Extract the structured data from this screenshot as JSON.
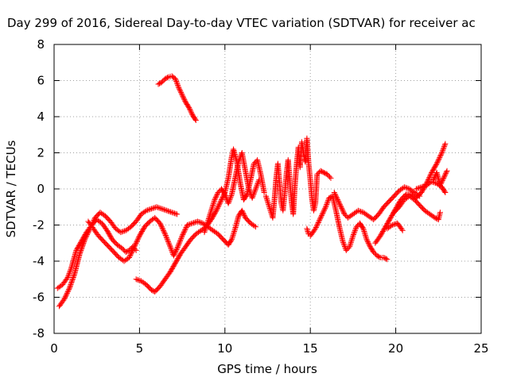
{
  "chart_data": {
    "type": "scatter",
    "title": "Day 299 of 2016, Sidereal Day-to-day VTEC variation (SDTVAR) for receiver ac",
    "xlabel": "GPS time / hours",
    "ylabel": "SDTVAR / TECUs",
    "xlim": [
      0,
      25
    ],
    "ylim": [
      -8,
      8
    ],
    "x_ticks": [
      "0",
      "5",
      "10",
      "15",
      "20",
      "25"
    ],
    "y_ticks": [
      "-8",
      "-6",
      "-4",
      "-2",
      "0",
      "2",
      "4",
      "6",
      "8"
    ],
    "grid": true,
    "marker": "+",
    "color": "#ff0000",
    "series": [
      {
        "points": [
          [
            0.2,
            -5.5
          ],
          [
            0.5,
            -5.3
          ],
          [
            0.8,
            -4.9
          ],
          [
            1.0,
            -4.4
          ],
          [
            1.3,
            -3.4
          ],
          [
            1.6,
            -2.9
          ],
          [
            1.9,
            -2.4
          ],
          [
            2.2,
            -2.0
          ],
          [
            2.5,
            -1.7
          ],
          [
            2.8,
            -1.9
          ],
          [
            3.1,
            -2.3
          ],
          [
            3.4,
            -2.8
          ],
          [
            3.7,
            -3.1
          ],
          [
            4.0,
            -3.3
          ],
          [
            4.2,
            -3.5
          ],
          [
            4.4,
            -3.4
          ],
          [
            4.6,
            -3.2
          ],
          [
            4.8,
            -3.4
          ]
        ]
      },
      {
        "points": [
          [
            0.3,
            -6.5
          ],
          [
            0.6,
            -6.1
          ],
          [
            0.9,
            -5.5
          ],
          [
            1.2,
            -4.7
          ],
          [
            1.5,
            -3.6
          ],
          [
            1.8,
            -2.8
          ],
          [
            2.1,
            -2.2
          ],
          [
            2.4,
            -1.6
          ],
          [
            2.7,
            -1.3
          ],
          [
            3.0,
            -1.5
          ],
          [
            3.3,
            -1.8
          ],
          [
            3.6,
            -2.2
          ],
          [
            3.9,
            -2.4
          ],
          [
            4.2,
            -2.3
          ],
          [
            4.5,
            -2.1
          ],
          [
            4.8,
            -1.8
          ],
          [
            5.1,
            -1.4
          ],
          [
            5.4,
            -1.2
          ],
          [
            5.7,
            -1.1
          ],
          [
            6.0,
            -1.0
          ],
          [
            6.3,
            -1.1
          ],
          [
            6.6,
            -1.2
          ],
          [
            6.9,
            -1.3
          ],
          [
            7.2,
            -1.4
          ]
        ]
      },
      {
        "points": [
          [
            2.0,
            -1.8
          ],
          [
            2.3,
            -2.2
          ],
          [
            2.6,
            -2.6
          ],
          [
            2.9,
            -2.9
          ],
          [
            3.2,
            -3.2
          ],
          [
            3.5,
            -3.5
          ],
          [
            3.8,
            -3.8
          ],
          [
            4.1,
            -4.0
          ],
          [
            4.4,
            -3.8
          ],
          [
            4.7,
            -3.2
          ],
          [
            5.0,
            -2.6
          ],
          [
            5.3,
            -2.1
          ],
          [
            5.6,
            -1.8
          ],
          [
            5.9,
            -1.6
          ],
          [
            6.2,
            -1.9
          ],
          [
            6.5,
            -2.5
          ],
          [
            6.8,
            -3.2
          ],
          [
            7.0,
            -3.7
          ],
          [
            7.2,
            -3.3
          ],
          [
            7.5,
            -2.6
          ],
          [
            7.8,
            -2.0
          ],
          [
            8.1,
            -1.9
          ],
          [
            8.4,
            -1.8
          ],
          [
            8.7,
            -1.9
          ],
          [
            9.0,
            -2.1
          ],
          [
            9.3,
            -2.3
          ],
          [
            9.6,
            -2.5
          ],
          [
            9.9,
            -2.8
          ],
          [
            10.2,
            -3.1
          ],
          [
            10.4,
            -2.8
          ],
          [
            10.6,
            -2.2
          ],
          [
            10.8,
            -1.5
          ],
          [
            11.0,
            -1.2
          ],
          [
            11.2,
            -1.6
          ],
          [
            11.5,
            -1.9
          ],
          [
            11.8,
            -2.1
          ]
        ]
      },
      {
        "points": [
          [
            4.8,
            -5.0
          ],
          [
            5.1,
            -5.1
          ],
          [
            5.4,
            -5.3
          ],
          [
            5.7,
            -5.6
          ],
          [
            5.9,
            -5.7
          ],
          [
            6.2,
            -5.4
          ],
          [
            6.5,
            -5.0
          ],
          [
            6.8,
            -4.6
          ],
          [
            7.1,
            -4.1
          ],
          [
            7.4,
            -3.6
          ],
          [
            7.7,
            -3.2
          ],
          [
            8.0,
            -2.8
          ],
          [
            8.3,
            -2.5
          ],
          [
            8.6,
            -2.3
          ],
          [
            8.9,
            -2.1
          ],
          [
            9.2,
            -1.7
          ],
          [
            9.5,
            -1.2
          ],
          [
            9.8,
            -0.6
          ],
          [
            10.0,
            -0.2
          ],
          [
            10.2,
            0.6
          ],
          [
            10.4,
            1.8
          ],
          [
            10.5,
            2.2
          ],
          [
            10.7,
            1.5
          ],
          [
            10.9,
            0.3
          ],
          [
            11.1,
            -0.6
          ],
          [
            11.3,
            -0.3
          ],
          [
            11.5,
            0.5
          ],
          [
            11.7,
            1.4
          ],
          [
            11.9,
            1.6
          ],
          [
            12.1,
            0.8
          ],
          [
            12.3,
            -0.2
          ]
        ]
      },
      {
        "points": [
          [
            6.1,
            5.8
          ],
          [
            6.3,
            5.9
          ],
          [
            6.5,
            6.1
          ],
          [
            6.7,
            6.2
          ],
          [
            6.9,
            6.25
          ],
          [
            7.1,
            6.1
          ],
          [
            7.3,
            5.6
          ],
          [
            7.5,
            5.2
          ],
          [
            7.7,
            4.8
          ],
          [
            7.9,
            4.5
          ],
          [
            8.1,
            4.1
          ],
          [
            8.3,
            3.8
          ]
        ]
      },
      {
        "points": [
          [
            8.8,
            -2.4
          ],
          [
            9.0,
            -1.8
          ],
          [
            9.2,
            -1.2
          ],
          [
            9.4,
            -0.6
          ],
          [
            9.6,
            -0.2
          ],
          [
            9.8,
            0.0
          ],
          [
            10.0,
            -0.3
          ],
          [
            10.2,
            -0.8
          ],
          [
            10.4,
            -0.3
          ],
          [
            10.6,
            0.6
          ],
          [
            10.8,
            1.5
          ],
          [
            11.0,
            2.0
          ],
          [
            11.2,
            1.0
          ],
          [
            11.4,
            0.0
          ],
          [
            11.6,
            -0.5
          ],
          [
            11.8,
            0.0
          ],
          [
            12.0,
            0.5
          ]
        ]
      },
      {
        "points": [
          [
            12.4,
            -0.4
          ],
          [
            12.6,
            -1.0
          ],
          [
            12.8,
            -1.6
          ],
          [
            12.9,
            -0.6
          ],
          [
            13.0,
            0.6
          ],
          [
            13.1,
            1.4
          ],
          [
            13.2,
            0.3
          ],
          [
            13.3,
            -0.8
          ],
          [
            13.4,
            -1.2
          ],
          [
            13.5,
            -0.3
          ],
          [
            13.6,
            0.8
          ],
          [
            13.7,
            1.6
          ],
          [
            13.8,
            0.4
          ],
          [
            13.9,
            -0.7
          ],
          [
            14.0,
            -1.4
          ],
          [
            14.1,
            0.2
          ],
          [
            14.2,
            1.4
          ],
          [
            14.3,
            2.3
          ],
          [
            14.4,
            1.2
          ],
          [
            14.5,
            2.6
          ],
          [
            14.6,
            2.0
          ],
          [
            14.7,
            1.5
          ],
          [
            14.8,
            2.8
          ],
          [
            14.9,
            1.4
          ],
          [
            15.0,
            0.5
          ],
          [
            15.1,
            -0.6
          ],
          [
            15.2,
            -1.2
          ],
          [
            15.3,
            -0.8
          ],
          [
            15.4,
            0.8
          ],
          [
            15.6,
            1.0
          ],
          [
            15.8,
            0.9
          ],
          [
            16.0,
            0.8
          ],
          [
            16.2,
            0.6
          ]
        ]
      },
      {
        "points": [
          [
            14.8,
            -2.2
          ],
          [
            14.9,
            -2.5
          ],
          [
            15.0,
            -2.6
          ],
          [
            15.3,
            -2.2
          ],
          [
            15.5,
            -1.8
          ],
          [
            15.7,
            -1.4
          ],
          [
            15.9,
            -1.0
          ],
          [
            16.1,
            -0.5
          ],
          [
            16.3,
            -0.4
          ],
          [
            16.5,
            -1.2
          ],
          [
            16.7,
            -2.1
          ],
          [
            16.9,
            -2.9
          ],
          [
            17.1,
            -3.4
          ],
          [
            17.3,
            -3.2
          ],
          [
            17.5,
            -2.6
          ],
          [
            17.7,
            -2.1
          ],
          [
            17.9,
            -1.9
          ],
          [
            18.1,
            -2.2
          ],
          [
            18.3,
            -2.8
          ],
          [
            18.5,
            -3.2
          ],
          [
            18.7,
            -3.5
          ],
          [
            18.9,
            -3.7
          ],
          [
            19.1,
            -3.8
          ],
          [
            19.3,
            -3.8
          ],
          [
            19.5,
            -3.9
          ]
        ]
      },
      {
        "points": [
          [
            16.4,
            -0.2
          ],
          [
            16.6,
            -0.6
          ],
          [
            16.8,
            -1.0
          ],
          [
            17.0,
            -1.4
          ],
          [
            17.2,
            -1.6
          ],
          [
            17.5,
            -1.4
          ],
          [
            17.8,
            -1.2
          ],
          [
            18.1,
            -1.3
          ],
          [
            18.4,
            -1.5
          ],
          [
            18.7,
            -1.7
          ],
          [
            19.0,
            -1.4
          ],
          [
            19.3,
            -1.0
          ],
          [
            19.6,
            -0.7
          ],
          [
            19.9,
            -0.4
          ],
          [
            20.2,
            -0.1
          ],
          [
            20.5,
            0.1
          ],
          [
            20.8,
            0.0
          ],
          [
            21.1,
            -0.2
          ],
          [
            21.4,
            -0.4
          ]
        ]
      },
      {
        "points": [
          [
            18.8,
            -3.0
          ],
          [
            19.1,
            -2.6
          ],
          [
            19.4,
            -2.1
          ],
          [
            19.7,
            -1.6
          ],
          [
            20.0,
            -1.1
          ],
          [
            20.3,
            -0.6
          ],
          [
            20.6,
            -0.3
          ],
          [
            20.9,
            -0.3
          ],
          [
            21.2,
            -0.5
          ],
          [
            21.5,
            -0.2
          ],
          [
            21.8,
            0.3
          ],
          [
            22.1,
            0.9
          ],
          [
            22.4,
            1.4
          ],
          [
            22.7,
            2.0
          ],
          [
            22.9,
            2.5
          ]
        ]
      },
      {
        "points": [
          [
            19.9,
            -1.3
          ],
          [
            20.2,
            -1.0
          ],
          [
            20.5,
            -0.6
          ],
          [
            20.8,
            -0.4
          ],
          [
            21.1,
            -0.6
          ],
          [
            21.4,
            -0.9
          ],
          [
            21.7,
            -1.2
          ],
          [
            22.0,
            -1.4
          ],
          [
            22.3,
            -1.6
          ],
          [
            22.5,
            -1.7
          ],
          [
            22.6,
            -1.3
          ]
        ]
      },
      {
        "points": [
          [
            21.2,
            0.0
          ],
          [
            21.5,
            0.1
          ],
          [
            21.8,
            0.2
          ],
          [
            22.1,
            0.4
          ],
          [
            22.4,
            0.3
          ],
          [
            22.7,
            0.1
          ],
          [
            22.9,
            -0.2
          ]
        ]
      },
      {
        "points": [
          [
            19.5,
            -2.2
          ],
          [
            19.8,
            -2.0
          ],
          [
            20.1,
            -1.9
          ],
          [
            20.4,
            -2.3
          ]
        ]
      },
      {
        "points": [
          [
            22.2,
            0.5
          ],
          [
            22.4,
            0.9
          ],
          [
            22.6,
            0.2
          ],
          [
            22.8,
            0.6
          ],
          [
            23.0,
            1.0
          ]
        ]
      }
    ]
  }
}
